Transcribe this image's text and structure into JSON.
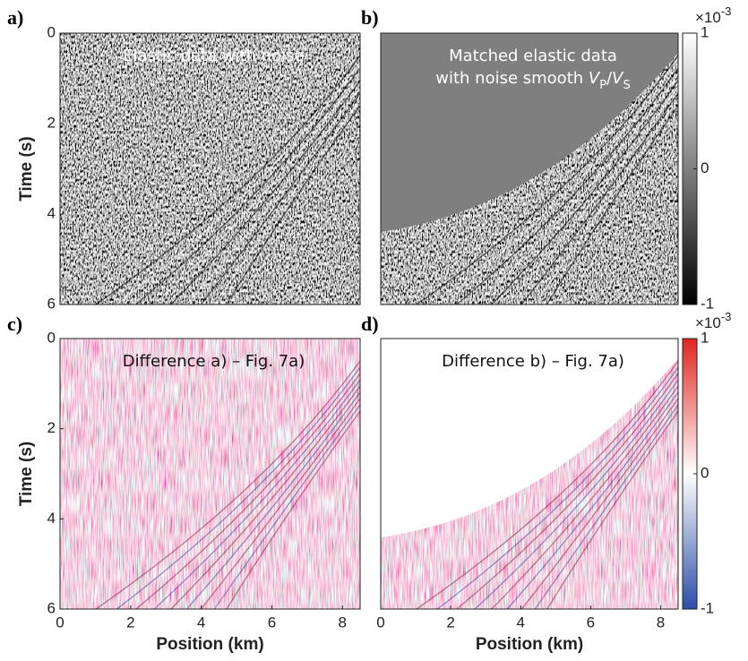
{
  "chart_data": [
    {
      "type": "image",
      "panel": "a)",
      "texture": "gray",
      "annotation": [
        "Elastic data with noise"
      ],
      "annotation_color": "#ffffff",
      "ylabel": "Time (s)",
      "xlim": [
        0,
        8.5
      ],
      "xticks": [],
      "ylim": [
        6,
        0
      ],
      "yticks": [
        0,
        2,
        4,
        6
      ]
    },
    {
      "type": "image",
      "panel": "b)",
      "texture": "gray",
      "mask": "#7f7f7f",
      "annotation": [
        "Matched elastic data"
      ],
      "annotation_rich": [
        {
          "text": "with noise smooth "
        },
        {
          "text": "V",
          "style": "italic"
        },
        {
          "text": "P",
          "style": "sub"
        },
        {
          "text": "/"
        },
        {
          "text": "V",
          "style": "italic"
        },
        {
          "text": "S",
          "style": "sub"
        }
      ],
      "annotation_color": "#ffffff",
      "xlim": [
        0,
        8.5
      ],
      "xticks": [],
      "ylim": [
        6,
        0
      ],
      "yticks": []
    },
    {
      "type": "colorbar",
      "colormap": [
        "#000000",
        "#ffffff"
      ],
      "exponent": "×10",
      "exponent_power": "-3",
      "ylim": [
        -1,
        1
      ],
      "yticks": [
        -1,
        0,
        1
      ]
    },
    {
      "type": "image",
      "panel": "c)",
      "texture": "redblue",
      "annotation": [
        "Difference a) – Fig. 7a)"
      ],
      "annotation_color": "#111111",
      "ylabel": "Time (s)",
      "xlabel": "Position (km)",
      "xlim": [
        0,
        8.5
      ],
      "xticks": [
        0,
        2,
        4,
        6,
        8
      ],
      "ylim": [
        6,
        0
      ],
      "yticks": [
        0,
        2,
        4,
        6
      ]
    },
    {
      "type": "image",
      "panel": "d)",
      "texture": "redblue",
      "mask": "#ffffff",
      "annotation": [
        "Difference b) – Fig. 7a)"
      ],
      "annotation_color": "#111111",
      "xlabel": "Position (km)",
      "xlim": [
        0,
        8.5
      ],
      "xticks": [
        0,
        2,
        4,
        6,
        8
      ],
      "ylim": [
        6,
        0
      ],
      "yticks": []
    },
    {
      "type": "colorbar",
      "colormap": [
        "#2b4ea8",
        "#ffffff",
        "#e0261f"
      ],
      "exponent": "×10",
      "exponent_power": "-3",
      "ylim": [
        -1,
        1
      ],
      "yticks": [
        -1,
        0,
        1
      ]
    }
  ]
}
